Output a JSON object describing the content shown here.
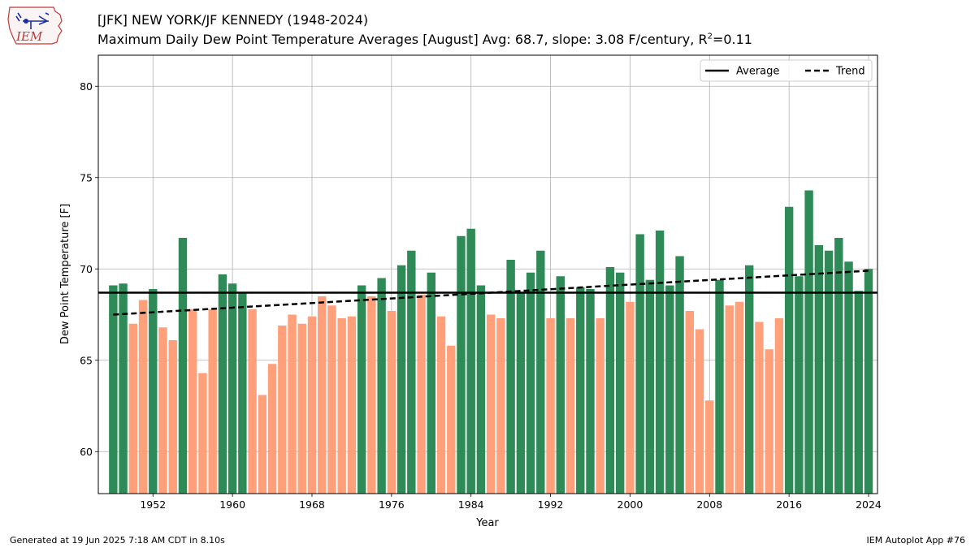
{
  "header": {
    "title": "[JFK] NEW YORK/JF KENNEDY (1948-2024)",
    "subtitle_prefix": "Maximum Daily Dew Point Temperature Averages [August]  Avg: 68.7, slope: 3.08 F/century, R",
    "subtitle_sup": "2",
    "subtitle_suffix": "=0.11"
  },
  "logo": {
    "text": "IEM",
    "icon": "iem-iowa-logo"
  },
  "footer": {
    "left": "Generated at 19 Jun 2025 7:18 AM CDT in 8.10s",
    "right": "IEM Autoplot App #76"
  },
  "chart_data": {
    "type": "bar",
    "xlabel": "Year",
    "ylabel": "Dew Point Temperature [F]",
    "xlim": [
      1946.5,
      2024.9
    ],
    "ylim": [
      57.7,
      81.7
    ],
    "xticks": [
      1952,
      1960,
      1968,
      1976,
      1984,
      1992,
      2000,
      2008,
      2016,
      2024
    ],
    "yticks": [
      60,
      65,
      70,
      75,
      80
    ],
    "grid": true,
    "average": 68.7,
    "trend": {
      "start": [
        1948,
        67.5
      ],
      "end": [
        2024,
        69.9
      ]
    },
    "above_color": "#2e8b57",
    "below_color": "#ffa07a",
    "legend": {
      "position": "top-right",
      "entries": [
        {
          "label": "Average",
          "style": "solid"
        },
        {
          "label": "Trend",
          "style": "dashed"
        }
      ]
    },
    "years": [
      1948,
      1949,
      1950,
      1951,
      1952,
      1953,
      1954,
      1955,
      1956,
      1957,
      1958,
      1959,
      1960,
      1961,
      1962,
      1963,
      1964,
      1965,
      1966,
      1967,
      1968,
      1969,
      1970,
      1971,
      1972,
      1973,
      1974,
      1975,
      1976,
      1977,
      1978,
      1979,
      1980,
      1981,
      1982,
      1983,
      1984,
      1985,
      1986,
      1987,
      1988,
      1989,
      1990,
      1991,
      1992,
      1993,
      1994,
      1995,
      1996,
      1997,
      1998,
      1999,
      2000,
      2001,
      2002,
      2003,
      2004,
      2005,
      2006,
      2007,
      2008,
      2009,
      2010,
      2011,
      2012,
      2013,
      2014,
      2015,
      2016,
      2017,
      2018,
      2019,
      2020,
      2021,
      2022,
      2023,
      2024
    ],
    "values": [
      69.1,
      69.2,
      67.0,
      68.3,
      68.9,
      66.8,
      66.1,
      71.7,
      67.8,
      64.3,
      67.8,
      69.7,
      69.2,
      68.7,
      67.8,
      63.1,
      64.8,
      66.9,
      67.5,
      67.0,
      67.4,
      68.5,
      68.0,
      67.3,
      67.4,
      69.1,
      68.5,
      69.5,
      67.7,
      70.2,
      71.0,
      68.6,
      69.8,
      67.4,
      65.8,
      71.8,
      72.2,
      69.1,
      67.5,
      67.3,
      70.5,
      68.7,
      69.8,
      71.0,
      67.3,
      69.6,
      67.3,
      69.0,
      68.9,
      67.3,
      70.1,
      69.8,
      68.2,
      71.9,
      69.4,
      72.1,
      69.1,
      70.7,
      67.7,
      66.7,
      62.8,
      69.4,
      68.0,
      68.2,
      70.2,
      67.1,
      65.6,
      67.3,
      73.4,
      69.6,
      74.3,
      71.3,
      71.0,
      71.7,
      70.4,
      68.8,
      70.0
    ]
  }
}
